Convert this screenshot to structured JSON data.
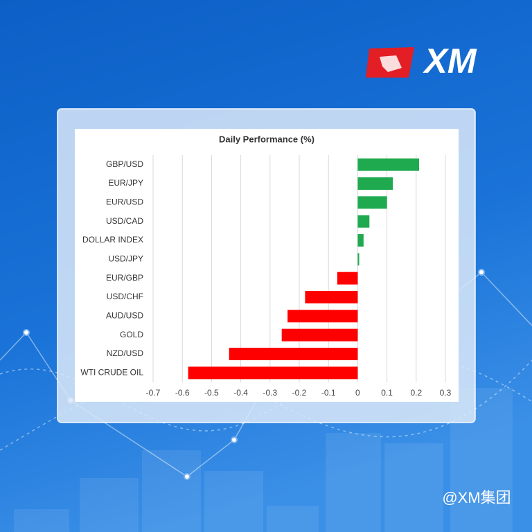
{
  "logo": "XM",
  "watermark": "@XM集团",
  "chart_data": {
    "type": "hbar",
    "title": "Daily Performance (%)",
    "categories": [
      "GBP/USD",
      "EUR/JPY",
      "EUR/USD",
      "USD/CAD",
      "DOLLAR INDEX",
      "USD/JPY",
      "EUR/GBP",
      "USD/CHF",
      "AUD/USD",
      "GOLD",
      "NZD/USD",
      "WTI CRUDE OIL"
    ],
    "values": [
      0.21,
      0.12,
      0.1,
      0.04,
      0.02,
      0.005,
      -0.07,
      -0.18,
      -0.24,
      -0.26,
      -0.44,
      -0.58
    ],
    "positive_color": "#1faa4f",
    "negative_color": "#ff0000",
    "xlim": [
      -0.7,
      0.3
    ],
    "xticks": [
      -0.7,
      -0.6,
      -0.5,
      -0.4,
      -0.3,
      -0.2,
      -0.1,
      0,
      0.1,
      0.2,
      0.3
    ],
    "grid": true
  }
}
